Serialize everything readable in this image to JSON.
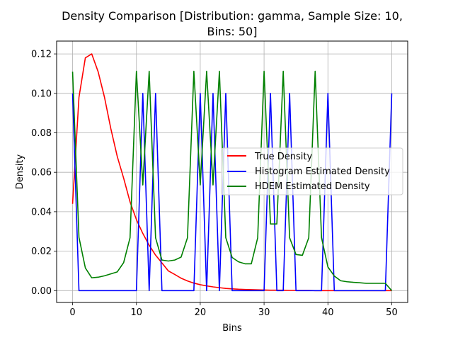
{
  "chart_data": {
    "type": "line",
    "title": "Density Comparison [Distribution: gamma, Sample Size: 10,",
    "title_line2": "Bins: 50]",
    "xlabel": "Bins",
    "ylabel": "Density",
    "xlim": [
      -2.5,
      52.5
    ],
    "ylim": [
      -0.006,
      0.1265
    ],
    "xticks": [
      0,
      10,
      20,
      30,
      40,
      50
    ],
    "yticks": [
      0.0,
      0.02,
      0.04,
      0.06,
      0.08,
      0.1,
      0.12
    ],
    "ytick_labels": [
      "0.00",
      "0.02",
      "0.04",
      "0.06",
      "0.08",
      "0.10",
      "0.12"
    ],
    "grid": true,
    "legend_position": "center-right",
    "x": [
      0,
      1,
      2,
      3,
      4,
      5,
      6,
      7,
      8,
      9,
      10,
      11,
      12,
      13,
      14,
      15,
      16,
      17,
      18,
      19,
      20,
      21,
      22,
      23,
      24,
      25,
      26,
      27,
      28,
      29,
      30,
      31,
      32,
      33,
      34,
      35,
      36,
      37,
      38,
      39,
      40,
      41,
      42,
      43,
      44,
      45,
      46,
      47,
      48,
      49,
      50
    ],
    "series": [
      {
        "name": "True Density",
        "color": "#ff0000",
        "values": [
          0.044,
          0.098,
          0.118,
          0.12,
          0.111,
          0.098,
          0.082,
          0.068,
          0.057,
          0.045,
          0.036,
          0.029,
          0.023,
          0.018,
          0.014,
          0.01,
          0.0082,
          0.0063,
          0.0049,
          0.0038,
          0.003,
          0.0024,
          0.0019,
          0.0015,
          0.0011,
          0.0009,
          0.0007,
          0.0006,
          0.0005,
          0.0004,
          0.0003,
          0.0002,
          0.0002,
          0.0002,
          0.0001,
          0.0001,
          0.0001,
          0.0001,
          0,
          0,
          0,
          0,
          0,
          0,
          0,
          0,
          0,
          0,
          0,
          0,
          0
        ]
      },
      {
        "name": "Histogram Estimated Density",
        "color": "#0000ff",
        "values": [
          0.1,
          0,
          0,
          0,
          0,
          0,
          0,
          0,
          0,
          0,
          0,
          0.1,
          0,
          0.1,
          0,
          0,
          0,
          0,
          0,
          0,
          0.1,
          0,
          0.1,
          0,
          0.1,
          0,
          0,
          0,
          0,
          0,
          0,
          0.1,
          0,
          0,
          0.1,
          0,
          0,
          0,
          0,
          0,
          0.1,
          0,
          0,
          0,
          0,
          0,
          0,
          0,
          0,
          0,
          0.1
        ]
      },
      {
        "name": "HDEM Estimated Density",
        "color": "#008000",
        "values": [
          0.111,
          0.027,
          0.0115,
          0.0065,
          0.0068,
          0.0075,
          0.0085,
          0.0095,
          0.0142,
          0.0268,
          0.1112,
          0.0536,
          0.1112,
          0.0268,
          0.0155,
          0.015,
          0.0155,
          0.017,
          0.0268,
          0.1112,
          0.0536,
          0.1112,
          0.0536,
          0.1112,
          0.0268,
          0.0168,
          0.0146,
          0.0136,
          0.0136,
          0.0268,
          0.1112,
          0.0338,
          0.0338,
          0.1112,
          0.0268,
          0.0183,
          0.0179,
          0.0268,
          0.1112,
          0.0268,
          0.012,
          0.0074,
          0.005,
          0.0045,
          0.0042,
          0.004,
          0.0037,
          0.0037,
          0.0037,
          0.0037,
          0.0
        ]
      }
    ]
  }
}
